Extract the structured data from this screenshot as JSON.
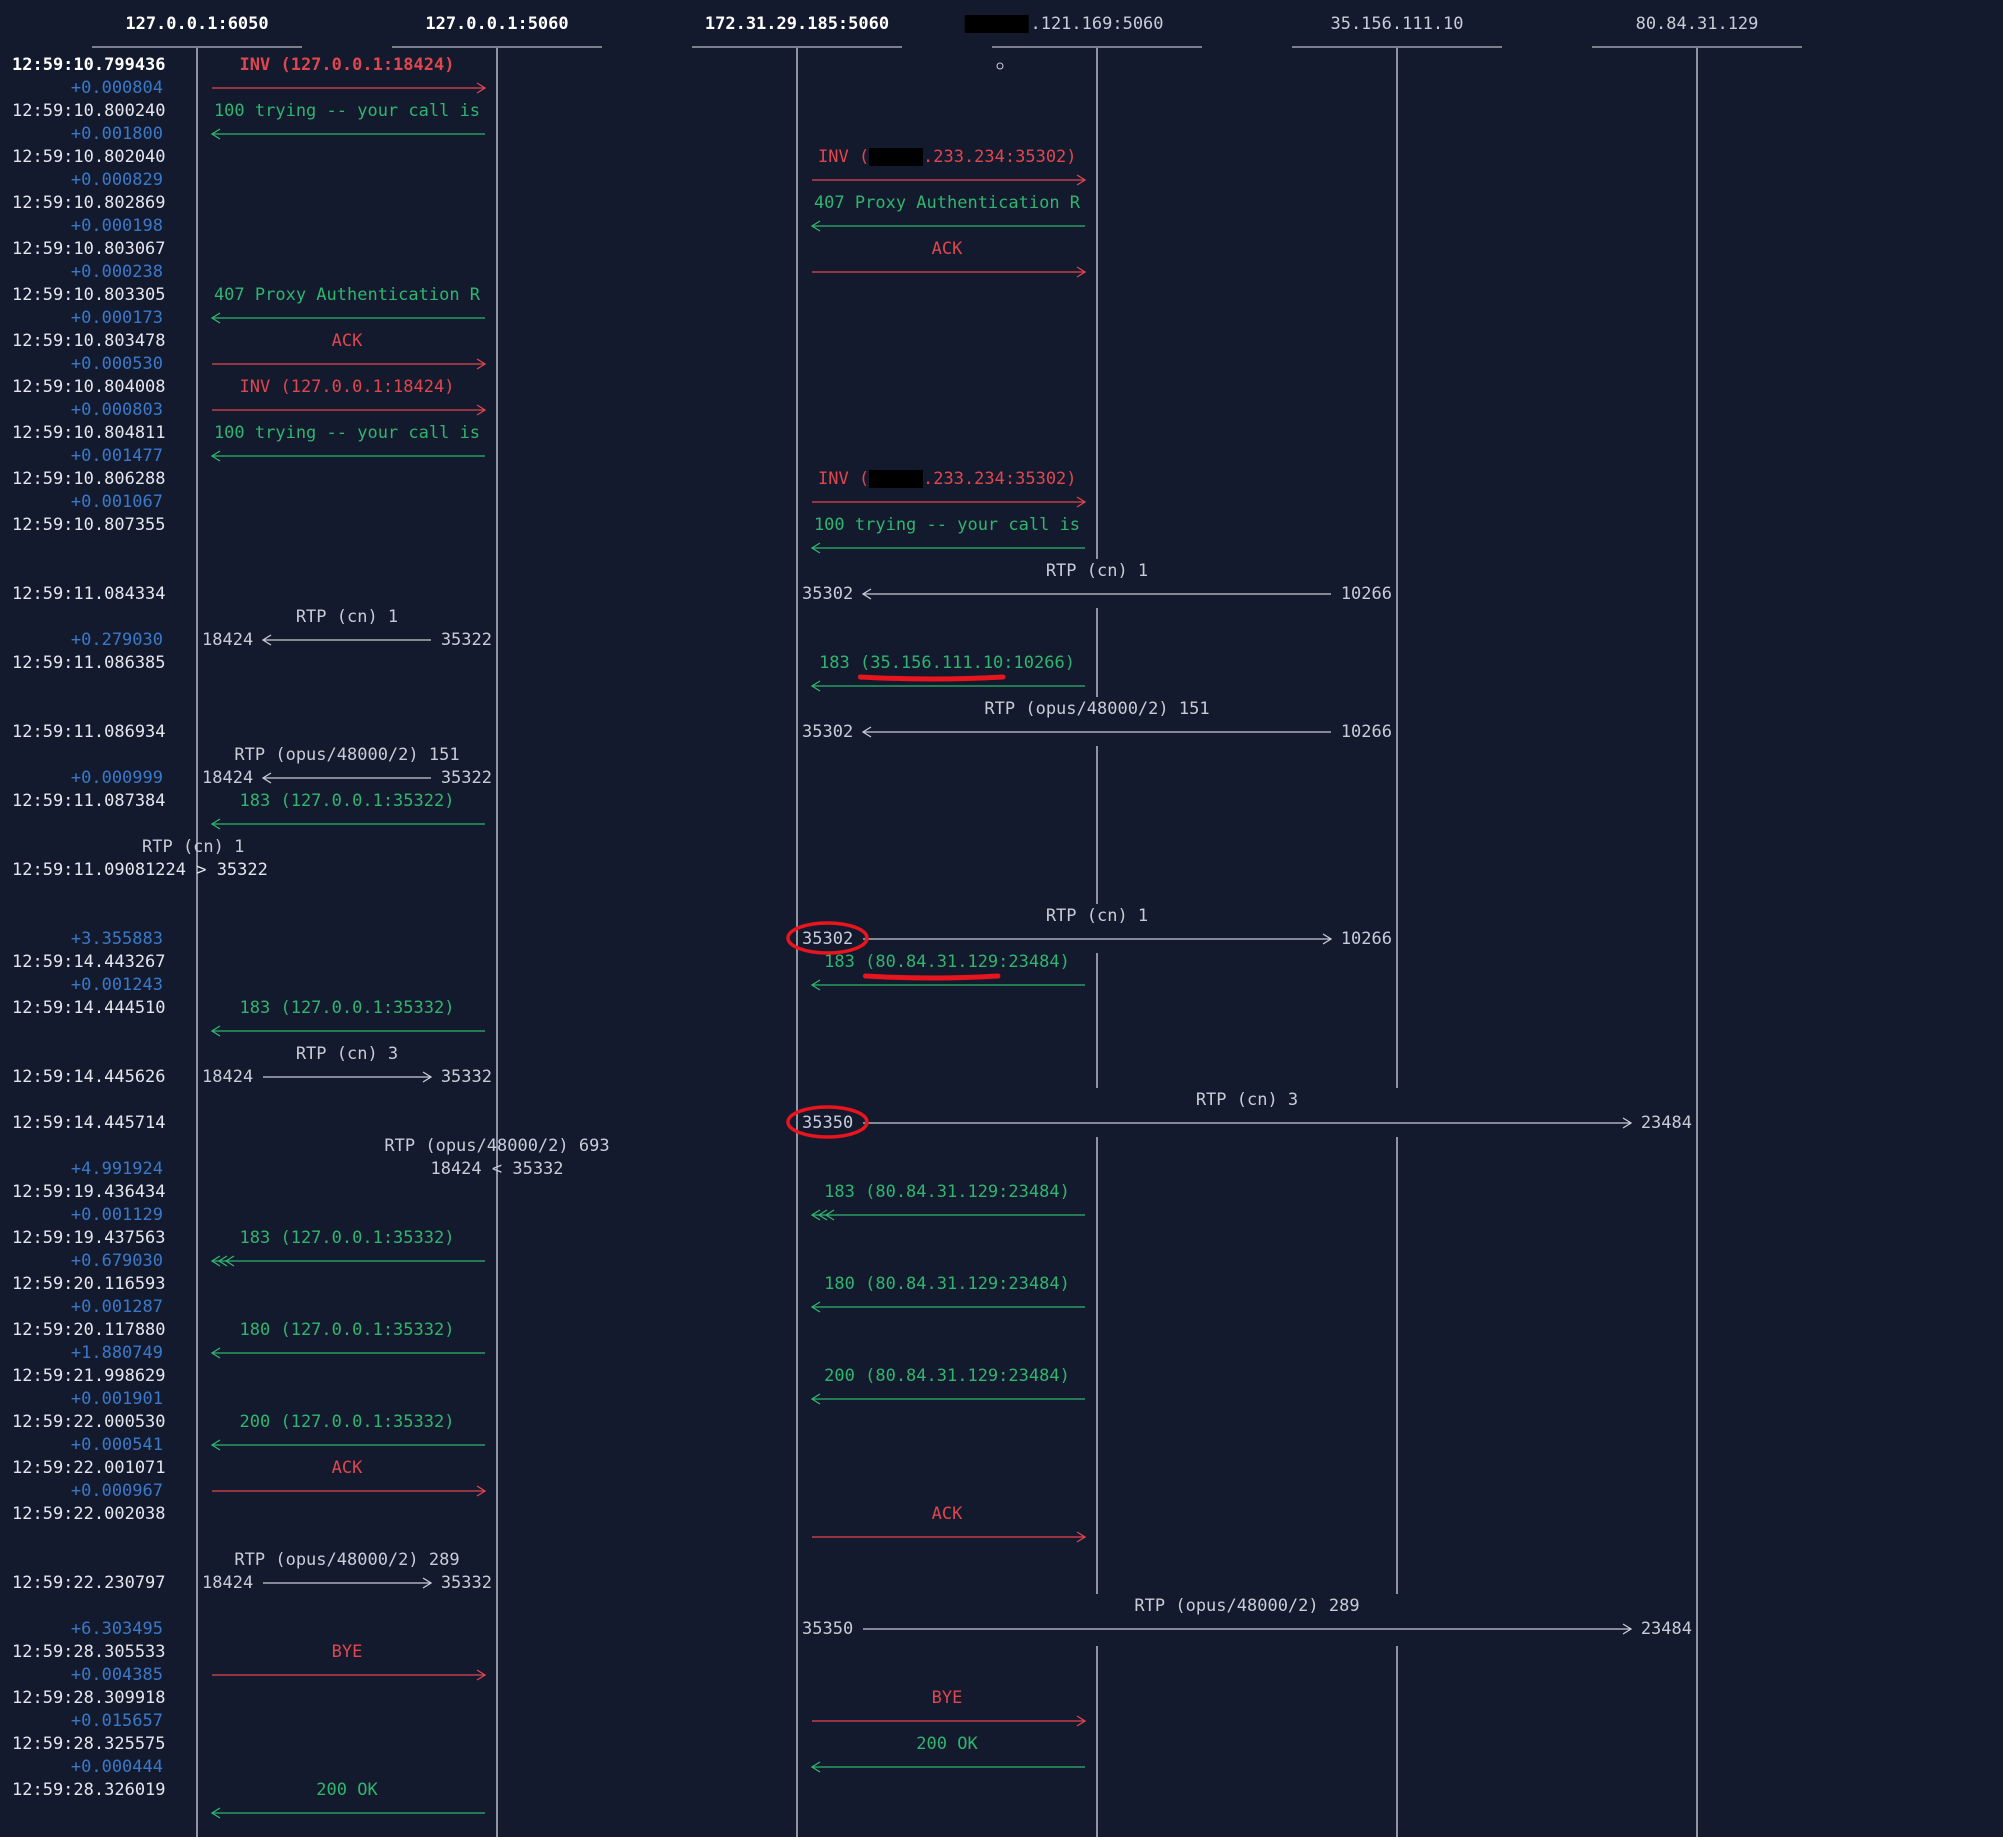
{
  "colors": {
    "background": "#141a2d",
    "lifeline": "#b9bdc9",
    "timestamp": "#e4e6ee",
    "delta": "#3a78c8",
    "request": "#e0464e",
    "response": "#2fb56e",
    "rtp": "#c8ccd8",
    "redaction": "#000000",
    "annotation": "#e8141e"
  },
  "participants": [
    {
      "label": "127.0.0.1:6050",
      "bold": true
    },
    {
      "label": "127.0.0.1:5060",
      "bold": true
    },
    {
      "label": "172.31.29.185:5060",
      "bold": true
    },
    {
      "label": ".121.169:5060",
      "bold": false,
      "redacted_prefix": true
    },
    {
      "label": "35.156.111.10",
      "bold": false
    },
    {
      "label": "80.84.31.129",
      "bold": false
    }
  ],
  "rows": [
    {
      "time": "12:59:10.799436",
      "bold": true
    },
    {
      "delta": "+0.000804"
    },
    {
      "time": "12:59:10.800240"
    },
    {
      "delta": "+0.001800"
    },
    {
      "time": "12:59:10.802040"
    },
    {
      "delta": "+0.000829"
    },
    {
      "time": "12:59:10.802869"
    },
    {
      "delta": "+0.000198"
    },
    {
      "time": "12:59:10.803067"
    },
    {
      "delta": "+0.000238"
    },
    {
      "time": "12:59:10.803305"
    },
    {
      "delta": "+0.000173"
    },
    {
      "time": "12:59:10.803478"
    },
    {
      "delta": "+0.000530"
    },
    {
      "time": "12:59:10.804008"
    },
    {
      "delta": "+0.000803"
    },
    {
      "time": "12:59:10.804811"
    },
    {
      "delta": "+0.001477"
    },
    {
      "time": "12:59:10.806288"
    },
    {
      "delta": "+0.001067"
    },
    {
      "time": "12:59:10.807355"
    },
    {},
    {},
    {
      "time": "12:59:11.084334"
    },
    {},
    {
      "delta": "+0.279030"
    },
    {
      "time": "12:59:11.086385"
    },
    {},
    {},
    {
      "time": "12:59:11.086934"
    },
    {},
    {
      "delta": "+0.000999"
    },
    {
      "time": "12:59:11.087384"
    },
    {},
    {},
    {
      "time": "12:59:11.09081224 > 35322"
    },
    {},
    {},
    {
      "delta": "+3.355883"
    },
    {
      "time": "12:59:14.443267"
    },
    {
      "delta": "+0.001243"
    },
    {
      "time": "12:59:14.444510"
    },
    {},
    {},
    {
      "time": "12:59:14.445626"
    },
    {},
    {
      "time": "12:59:14.445714"
    },
    {},
    {
      "delta": "+4.991924"
    },
    {
      "time": "12:59:19.436434"
    },
    {
      "delta": "+0.001129"
    },
    {
      "time": "12:59:19.437563"
    },
    {
      "delta": "+0.679030"
    },
    {
      "time": "12:59:20.116593"
    },
    {
      "delta": "+0.001287"
    },
    {
      "time": "12:59:20.117880"
    },
    {
      "delta": "+1.880749"
    },
    {
      "time": "12:59:21.998629"
    },
    {
      "delta": "+0.001901"
    },
    {
      "time": "12:59:22.000530"
    },
    {
      "delta": "+0.000541"
    },
    {
      "time": "12:59:22.001071"
    },
    {
      "delta": "+0.000967"
    },
    {
      "time": "12:59:22.002038"
    },
    {},
    {},
    {
      "time": "12:59:22.230797"
    },
    {},
    {
      "delta": "+6.303495"
    },
    {
      "time": "12:59:28.305533"
    },
    {
      "delta": "+0.004385"
    },
    {
      "time": "12:59:28.309918"
    },
    {
      "delta": "+0.015657"
    },
    {
      "time": "12:59:28.325575"
    },
    {
      "delta": "+0.000444"
    },
    {
      "time": "12:59:28.326019"
    }
  ],
  "sip_messages": [
    {
      "row": 0,
      "from": 0,
      "to": 1,
      "label": "INV (127.0.0.1:18424)",
      "kind": "request",
      "bold": true
    },
    {
      "row": 2,
      "from": 1,
      "to": 0,
      "label": "100 trying -- your call is",
      "kind": "response"
    },
    {
      "row": 4,
      "from": 2,
      "to": 3,
      "label": "INV (",
      "label_after": ".233.234:35302)",
      "kind": "request",
      "redact": true
    },
    {
      "row": 6,
      "from": 3,
      "to": 2,
      "label": "407 Proxy Authentication R",
      "kind": "response"
    },
    {
      "row": 8,
      "from": 2,
      "to": 3,
      "label": "ACK",
      "kind": "request"
    },
    {
      "row": 10,
      "from": 1,
      "to": 0,
      "label": "407 Proxy Authentication R",
      "kind": "response"
    },
    {
      "row": 12,
      "from": 0,
      "to": 1,
      "label": "ACK",
      "kind": "request"
    },
    {
      "row": 14,
      "from": 0,
      "to": 1,
      "label": "INV (127.0.0.1:18424)",
      "kind": "request"
    },
    {
      "row": 16,
      "from": 1,
      "to": 0,
      "label": "100 trying -- your call is",
      "kind": "response"
    },
    {
      "row": 18,
      "from": 2,
      "to": 3,
      "label": "INV (",
      "label_after": ".233.234:35302)",
      "kind": "request",
      "redact": true
    },
    {
      "row": 20,
      "from": 3,
      "to": 2,
      "label": "100 trying -- your call is",
      "kind": "response"
    },
    {
      "row": 26,
      "from": 3,
      "to": 2,
      "label": "183 (35.156.111.10:10266)",
      "kind": "response",
      "underline": true
    },
    {
      "row": 32,
      "from": 1,
      "to": 0,
      "label": "183 (127.0.0.1:35322)",
      "kind": "response"
    },
    {
      "row": 39,
      "from": 3,
      "to": 2,
      "label": "183 (80.84.31.129:23484)",
      "kind": "response",
      "underline": true
    },
    {
      "row": 41,
      "from": 1,
      "to": 0,
      "label": "183 (127.0.0.1:35332)",
      "kind": "response"
    },
    {
      "row": 49,
      "from": 3,
      "to": 2,
      "label": "183 (80.84.31.129:23484)",
      "kind": "response",
      "retrans": true
    },
    {
      "row": 51,
      "from": 1,
      "to": 0,
      "label": "183 (127.0.0.1:35332)",
      "kind": "response",
      "retrans": true
    },
    {
      "row": 53,
      "from": 3,
      "to": 2,
      "label": "180 (80.84.31.129:23484)",
      "kind": "response"
    },
    {
      "row": 55,
      "from": 1,
      "to": 0,
      "label": "180 (127.0.0.1:35332)",
      "kind": "response"
    },
    {
      "row": 57,
      "from": 3,
      "to": 2,
      "label": "200 (80.84.31.129:23484)",
      "kind": "response"
    },
    {
      "row": 59,
      "from": 1,
      "to": 0,
      "label": "200 (127.0.0.1:35332)",
      "kind": "response"
    },
    {
      "row": 61,
      "from": 0,
      "to": 1,
      "label": "ACK",
      "kind": "request"
    },
    {
      "row": 63,
      "from": 2,
      "to": 3,
      "label": "ACK",
      "kind": "request"
    },
    {
      "row": 69,
      "from": 0,
      "to": 1,
      "label": "BYE",
      "kind": "request"
    },
    {
      "row": 71,
      "from": 2,
      "to": 3,
      "label": "BYE",
      "kind": "request"
    },
    {
      "row": 73,
      "from": 3,
      "to": 2,
      "label": "200 OK",
      "kind": "response"
    },
    {
      "row": 75,
      "from": 1,
      "to": 0,
      "label": "200 OK",
      "kind": "response"
    }
  ],
  "rtp_flows": [
    {
      "row": 23,
      "label_row": 22,
      "from": 4,
      "to": 2,
      "label": "RTP (cn) 1",
      "left_port": "35302",
      "right_port": "10266"
    },
    {
      "row": 25,
      "label_row": 24,
      "from": 1,
      "to": 0,
      "label": "RTP (cn) 1",
      "left_port": "18424",
      "right_port": "35322"
    },
    {
      "row": 29,
      "label_row": 28,
      "from": 4,
      "to": 2,
      "label": "RTP (opus/48000/2) 151",
      "left_port": "35302",
      "right_port": "10266"
    },
    {
      "row": 31,
      "label_row": 30,
      "from": 1,
      "to": 0,
      "label": "RTP (opus/48000/2) 151",
      "left_port": "18424",
      "right_port": "35322"
    },
    {
      "row": 38,
      "label_row": 37,
      "from": 2,
      "to": 4,
      "label": "RTP (cn) 1",
      "left_port": "35302",
      "right_port": "10266",
      "circle_left": true
    },
    {
      "row": 44,
      "label_row": 43,
      "from": 0,
      "to": 1,
      "label": "RTP (cn) 3",
      "left_port": "18424",
      "right_port": "35332"
    },
    {
      "row": 46,
      "label_row": 45,
      "from": 2,
      "to": 5,
      "label": "RTP (cn) 3",
      "left_port": "35350",
      "right_port": "23484",
      "circle_left": true
    },
    {
      "row": 66,
      "label_row": 65,
      "from": 0,
      "to": 1,
      "label": "RTP (opus/48000/2) 289",
      "left_port": "18424",
      "right_port": "35332"
    },
    {
      "row": 68,
      "label_row": 67,
      "from": 2,
      "to": 5,
      "label": "RTP (opus/48000/2) 289",
      "left_port": "35350",
      "right_port": "23484"
    }
  ],
  "misc_text": [
    {
      "row": 34,
      "text": "RTP (cn) 1",
      "anchor": "start",
      "col": -1
    },
    {
      "row": 47,
      "text": "RTP (opus/48000/2) 693",
      "anchor": "middle",
      "col": 1
    },
    {
      "row": 48,
      "text": "18424 < 35332",
      "anchor": "middle",
      "col": 1
    }
  ]
}
